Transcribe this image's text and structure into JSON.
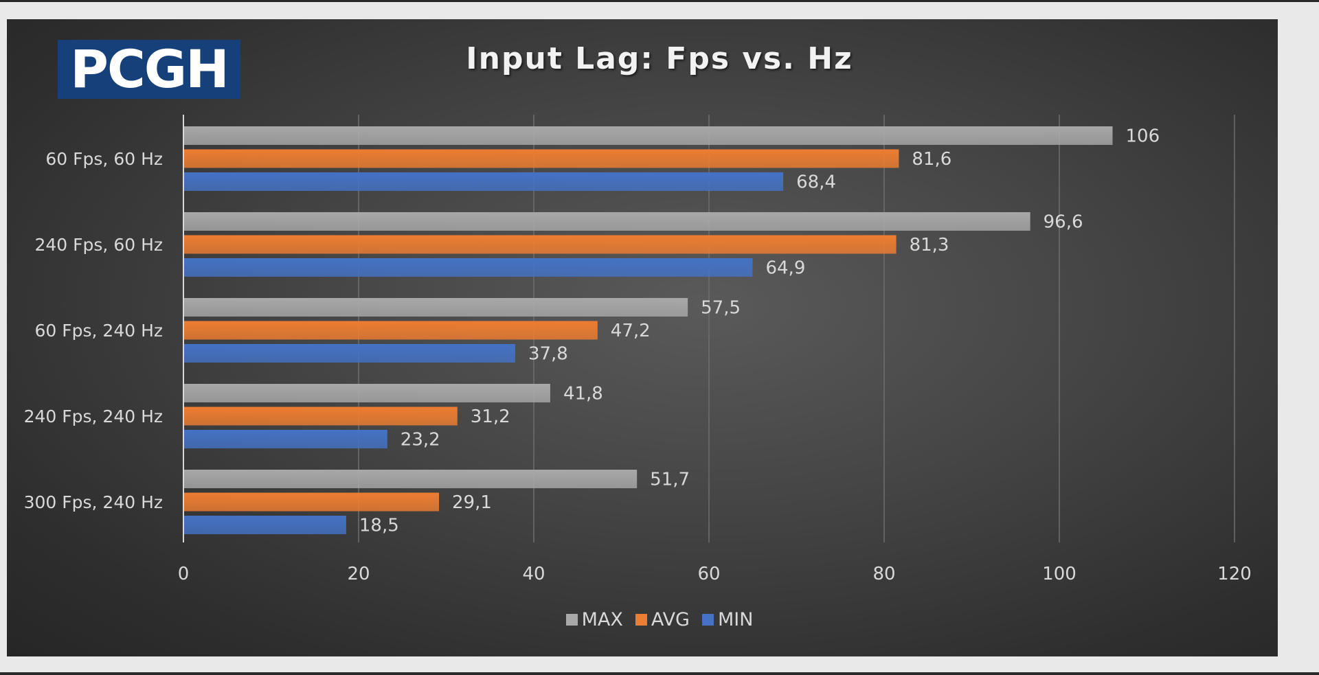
{
  "logo": {
    "text": "PCGH"
  },
  "chart_data": {
    "type": "bar",
    "orientation": "horizontal",
    "title": "Input Lag: Fps vs. Hz",
    "categories": [
      "60 Fps, 60 Hz",
      "240 Fps, 60 Hz",
      "60 Fps, 240 Hz",
      "240 Fps, 240 Hz",
      "300 Fps, 240 Hz"
    ],
    "series": [
      {
        "name": "MAX",
        "color": "#a8a8a8",
        "values": [
          106,
          96.6,
          57.5,
          41.8,
          51.7
        ],
        "labels": [
          "106",
          "96,6",
          "57,5",
          "41,8",
          "51,7"
        ]
      },
      {
        "name": "AVG",
        "color": "#ed7d31",
        "values": [
          81.6,
          81.3,
          47.2,
          31.2,
          29.1
        ],
        "labels": [
          "81,6",
          "81,3",
          "47,2",
          "31,2",
          "29,1"
        ]
      },
      {
        "name": "MIN",
        "color": "#4472c4",
        "values": [
          68.4,
          64.9,
          37.8,
          23.2,
          18.5
        ],
        "labels": [
          "68,4",
          "64,9",
          "37,8",
          "23,2",
          "18,5"
        ]
      }
    ],
    "xlim": [
      0,
      120
    ],
    "xticks": [
      0,
      20,
      40,
      60,
      80,
      100,
      120
    ],
    "xtick_labels": [
      "0",
      "20",
      "40",
      "60",
      "80",
      "100",
      "120"
    ],
    "grid": true,
    "legend_position": "bottom-center"
  }
}
